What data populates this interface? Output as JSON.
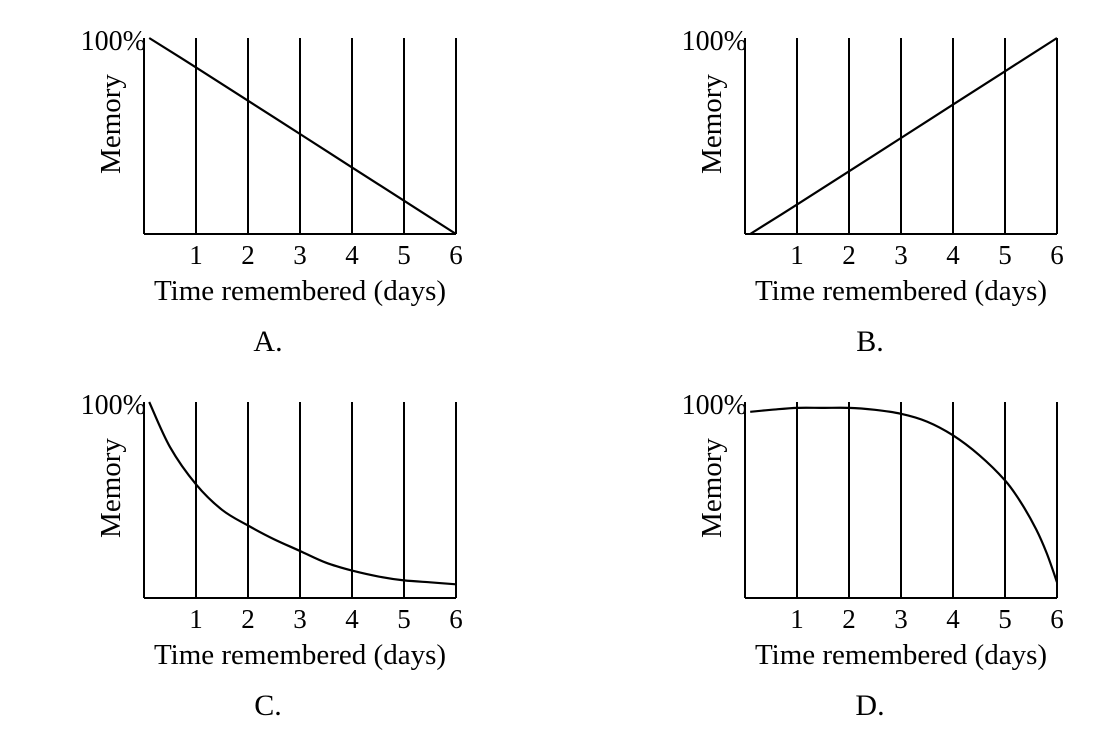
{
  "chart_data": [
    {
      "type": "line",
      "panel_label": "A.",
      "xlabel": "Time remembered (days)",
      "ylabel": "Memory",
      "y_top_label": "100%",
      "x_ticks": [
        "1",
        "2",
        "3",
        "4",
        "5",
        "6"
      ],
      "xlim": [
        0.1,
        6
      ],
      "ylim": [
        0,
        100
      ],
      "grid": "vertical lines at each day",
      "series": [
        {
          "x": [
            0.1,
            1,
            2,
            3,
            4,
            5,
            6
          ],
          "y": [
            100,
            85,
            68,
            51,
            34,
            17,
            0
          ]
        }
      ]
    },
    {
      "type": "line",
      "panel_label": "B.",
      "xlabel": "Time remembered (days)",
      "ylabel": "Memory",
      "y_top_label": "100%",
      "x_ticks": [
        "1",
        "2",
        "3",
        "4",
        "5",
        "6"
      ],
      "xlim": [
        0.1,
        6
      ],
      "ylim": [
        0,
        100
      ],
      "grid": "vertical lines at each day",
      "series": [
        {
          "x": [
            0.1,
            1,
            2,
            3,
            4,
            5,
            6
          ],
          "y": [
            0,
            15,
            32,
            49,
            66,
            83,
            100
          ]
        }
      ]
    },
    {
      "type": "line",
      "panel_label": "C.",
      "xlabel": "Time remembered (days)",
      "ylabel": "Memory",
      "y_top_label": "100%",
      "x_ticks": [
        "1",
        "2",
        "3",
        "4",
        "5",
        "6"
      ],
      "xlim": [
        0.1,
        6
      ],
      "ylim": [
        0,
        100
      ],
      "grid": "vertical lines at each day",
      "series": [
        {
          "x": [
            0.1,
            0.5,
            1,
            1.5,
            2,
            2.5,
            3,
            3.5,
            4,
            4.5,
            5,
            5.5,
            6
          ],
          "y": [
            100,
            77,
            58,
            45,
            37,
            30,
            24,
            18,
            14,
            11,
            9,
            8,
            7
          ]
        }
      ]
    },
    {
      "type": "line",
      "panel_label": "D.",
      "xlabel": "Time remembered (days)",
      "ylabel": "Memory",
      "y_top_label": "100%",
      "x_ticks": [
        "1",
        "2",
        "3",
        "4",
        "5",
        "6"
      ],
      "xlim": [
        0.1,
        6
      ],
      "ylim": [
        0,
        100
      ],
      "grid": "vertical lines at each day",
      "series": [
        {
          "x": [
            0.1,
            0.5,
            1,
            1.5,
            2,
            2.5,
            3,
            3.5,
            4,
            4.5,
            5,
            5.3,
            5.6,
            5.8,
            6
          ],
          "y": [
            95,
            96,
            97,
            97,
            97,
            96,
            94,
            90,
            83,
            73,
            60,
            49,
            35,
            23,
            8
          ]
        }
      ]
    }
  ]
}
